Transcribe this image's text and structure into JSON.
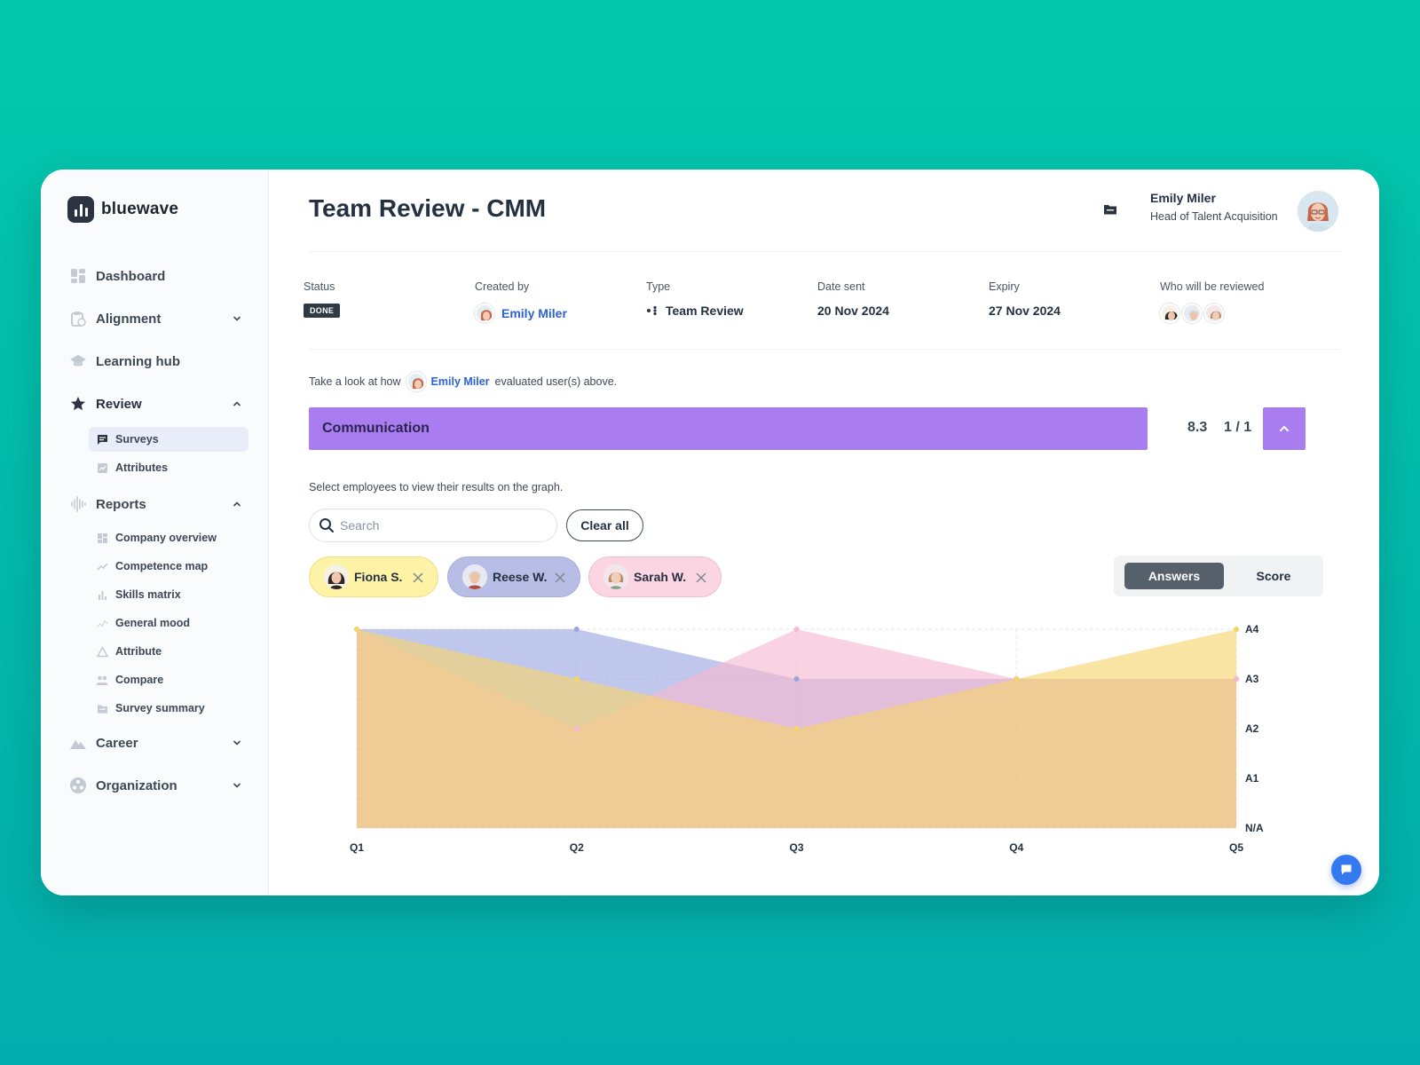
{
  "app": {
    "brand": "bluewave"
  },
  "sidebar": {
    "items": [
      {
        "label": "Dashboard",
        "icon": "dashboard-icon"
      },
      {
        "label": "Alignment",
        "icon": "clipboard-icon"
      },
      {
        "label": "Learning hub",
        "icon": "graduation-cap-icon"
      },
      {
        "label": "Review",
        "icon": "star-icon"
      },
      {
        "label": "Reports",
        "icon": "soundwave-icon"
      },
      {
        "label": "Career",
        "icon": "mountain-icon"
      },
      {
        "label": "Organization",
        "icon": "organization-icon"
      }
    ],
    "review_sub": [
      {
        "label": "Surveys",
        "icon": "message-icon"
      },
      {
        "label": "Attributes",
        "icon": "chart-box-icon"
      }
    ],
    "reports_sub": [
      {
        "label": "Company overview",
        "icon": "grid-icon"
      },
      {
        "label": "Competence map",
        "icon": "trend-icon"
      },
      {
        "label": "Skills matrix",
        "icon": "bars-icon"
      },
      {
        "label": "General mood",
        "icon": "mood-line-icon"
      },
      {
        "label": "Attribute",
        "icon": "triangle-icon"
      },
      {
        "label": "Compare",
        "icon": "people-icon"
      },
      {
        "label": "Survey summary",
        "icon": "folder-icon"
      }
    ]
  },
  "header": {
    "title": "Team Review - CMM",
    "user_name": "Emily Miler",
    "user_role": "Head of Talent Acquisition"
  },
  "meta": {
    "status_label": "Status",
    "status_value": "DONE",
    "created_label": "Created by",
    "created_value": "Emily Miler",
    "type_label": "Type",
    "type_value": "Team Review",
    "date_label": "Date sent",
    "date_value": "20 Nov 2024",
    "expiry_label": "Expiry",
    "expiry_value": "27 Nov 2024",
    "reviewed_label": "Who will be reviewed"
  },
  "evaluation": {
    "prefix": "Take a look at how",
    "name": "Emily Miler",
    "suffix": "evaluated user(s) above."
  },
  "section": {
    "title": "Communication",
    "score": "8.3",
    "pager": "1 / 1",
    "color": "#a97cf0"
  },
  "filters": {
    "hint": "Select employees to view their results on the graph.",
    "search_placeholder": "Search",
    "clear_label": "Clear all",
    "chips": [
      {
        "name": "Fiona S.",
        "color": "#fdf2a6"
      },
      {
        "name": "Reese W.",
        "color": "#b8bde6"
      },
      {
        "name": "Sarah W.",
        "color": "#fbd5e2"
      }
    ],
    "view_answers": "Answers",
    "view_score": "Score"
  },
  "chart_data": {
    "type": "area",
    "categories": [
      "Q1",
      "Q2",
      "Q3",
      "Q4",
      "Q5"
    ],
    "y_levels": [
      "N/A",
      "A1",
      "A2",
      "A3",
      "A4"
    ],
    "ylim": [
      0,
      4
    ],
    "grid": true,
    "series": [
      {
        "name": "Reese W.",
        "values": [
          4,
          4,
          3,
          3,
          3
        ],
        "color": "#9aa5e0"
      },
      {
        "name": "Sarah W.",
        "values": [
          4,
          2,
          4,
          3,
          3
        ],
        "color": "#f7b8d1"
      },
      {
        "name": "Fiona S.",
        "values": [
          4,
          3,
          2,
          3,
          4
        ],
        "color": "#f7d36a"
      }
    ]
  }
}
